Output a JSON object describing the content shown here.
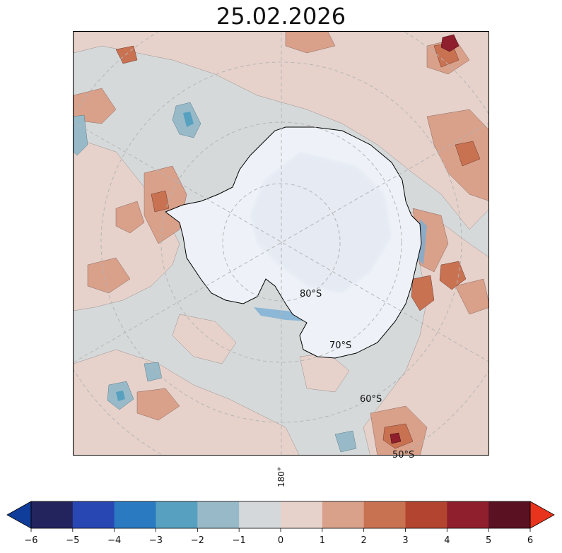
{
  "title": "25.02.2026",
  "map": {
    "projection": "south-polar-stereographic",
    "ocean_color": "#d6d9da",
    "land_color": "#eef2f8",
    "latitude_labels": [
      "80°S",
      "70°S",
      "60°S",
      "50°S"
    ],
    "longitude_label": "180°"
  },
  "colorbar": {
    "ticks": [
      "−6",
      "−5",
      "−4",
      "−3",
      "−2",
      "−1",
      "0",
      "1",
      "2",
      "3",
      "4",
      "5",
      "6"
    ],
    "min": -6,
    "max": 6,
    "extend": "both",
    "colors": [
      "#23235e",
      "#2947b3",
      "#2a7ac2",
      "#57a0c0",
      "#98bac8",
      "#d5d8da",
      "#e6d2cb",
      "#d9a08a",
      "#c97252",
      "#b34430",
      "#8f1f2c",
      "#5a1222"
    ],
    "lower_extend_color": "#103c9a",
    "upper_extend_color": "#e8341c"
  }
}
